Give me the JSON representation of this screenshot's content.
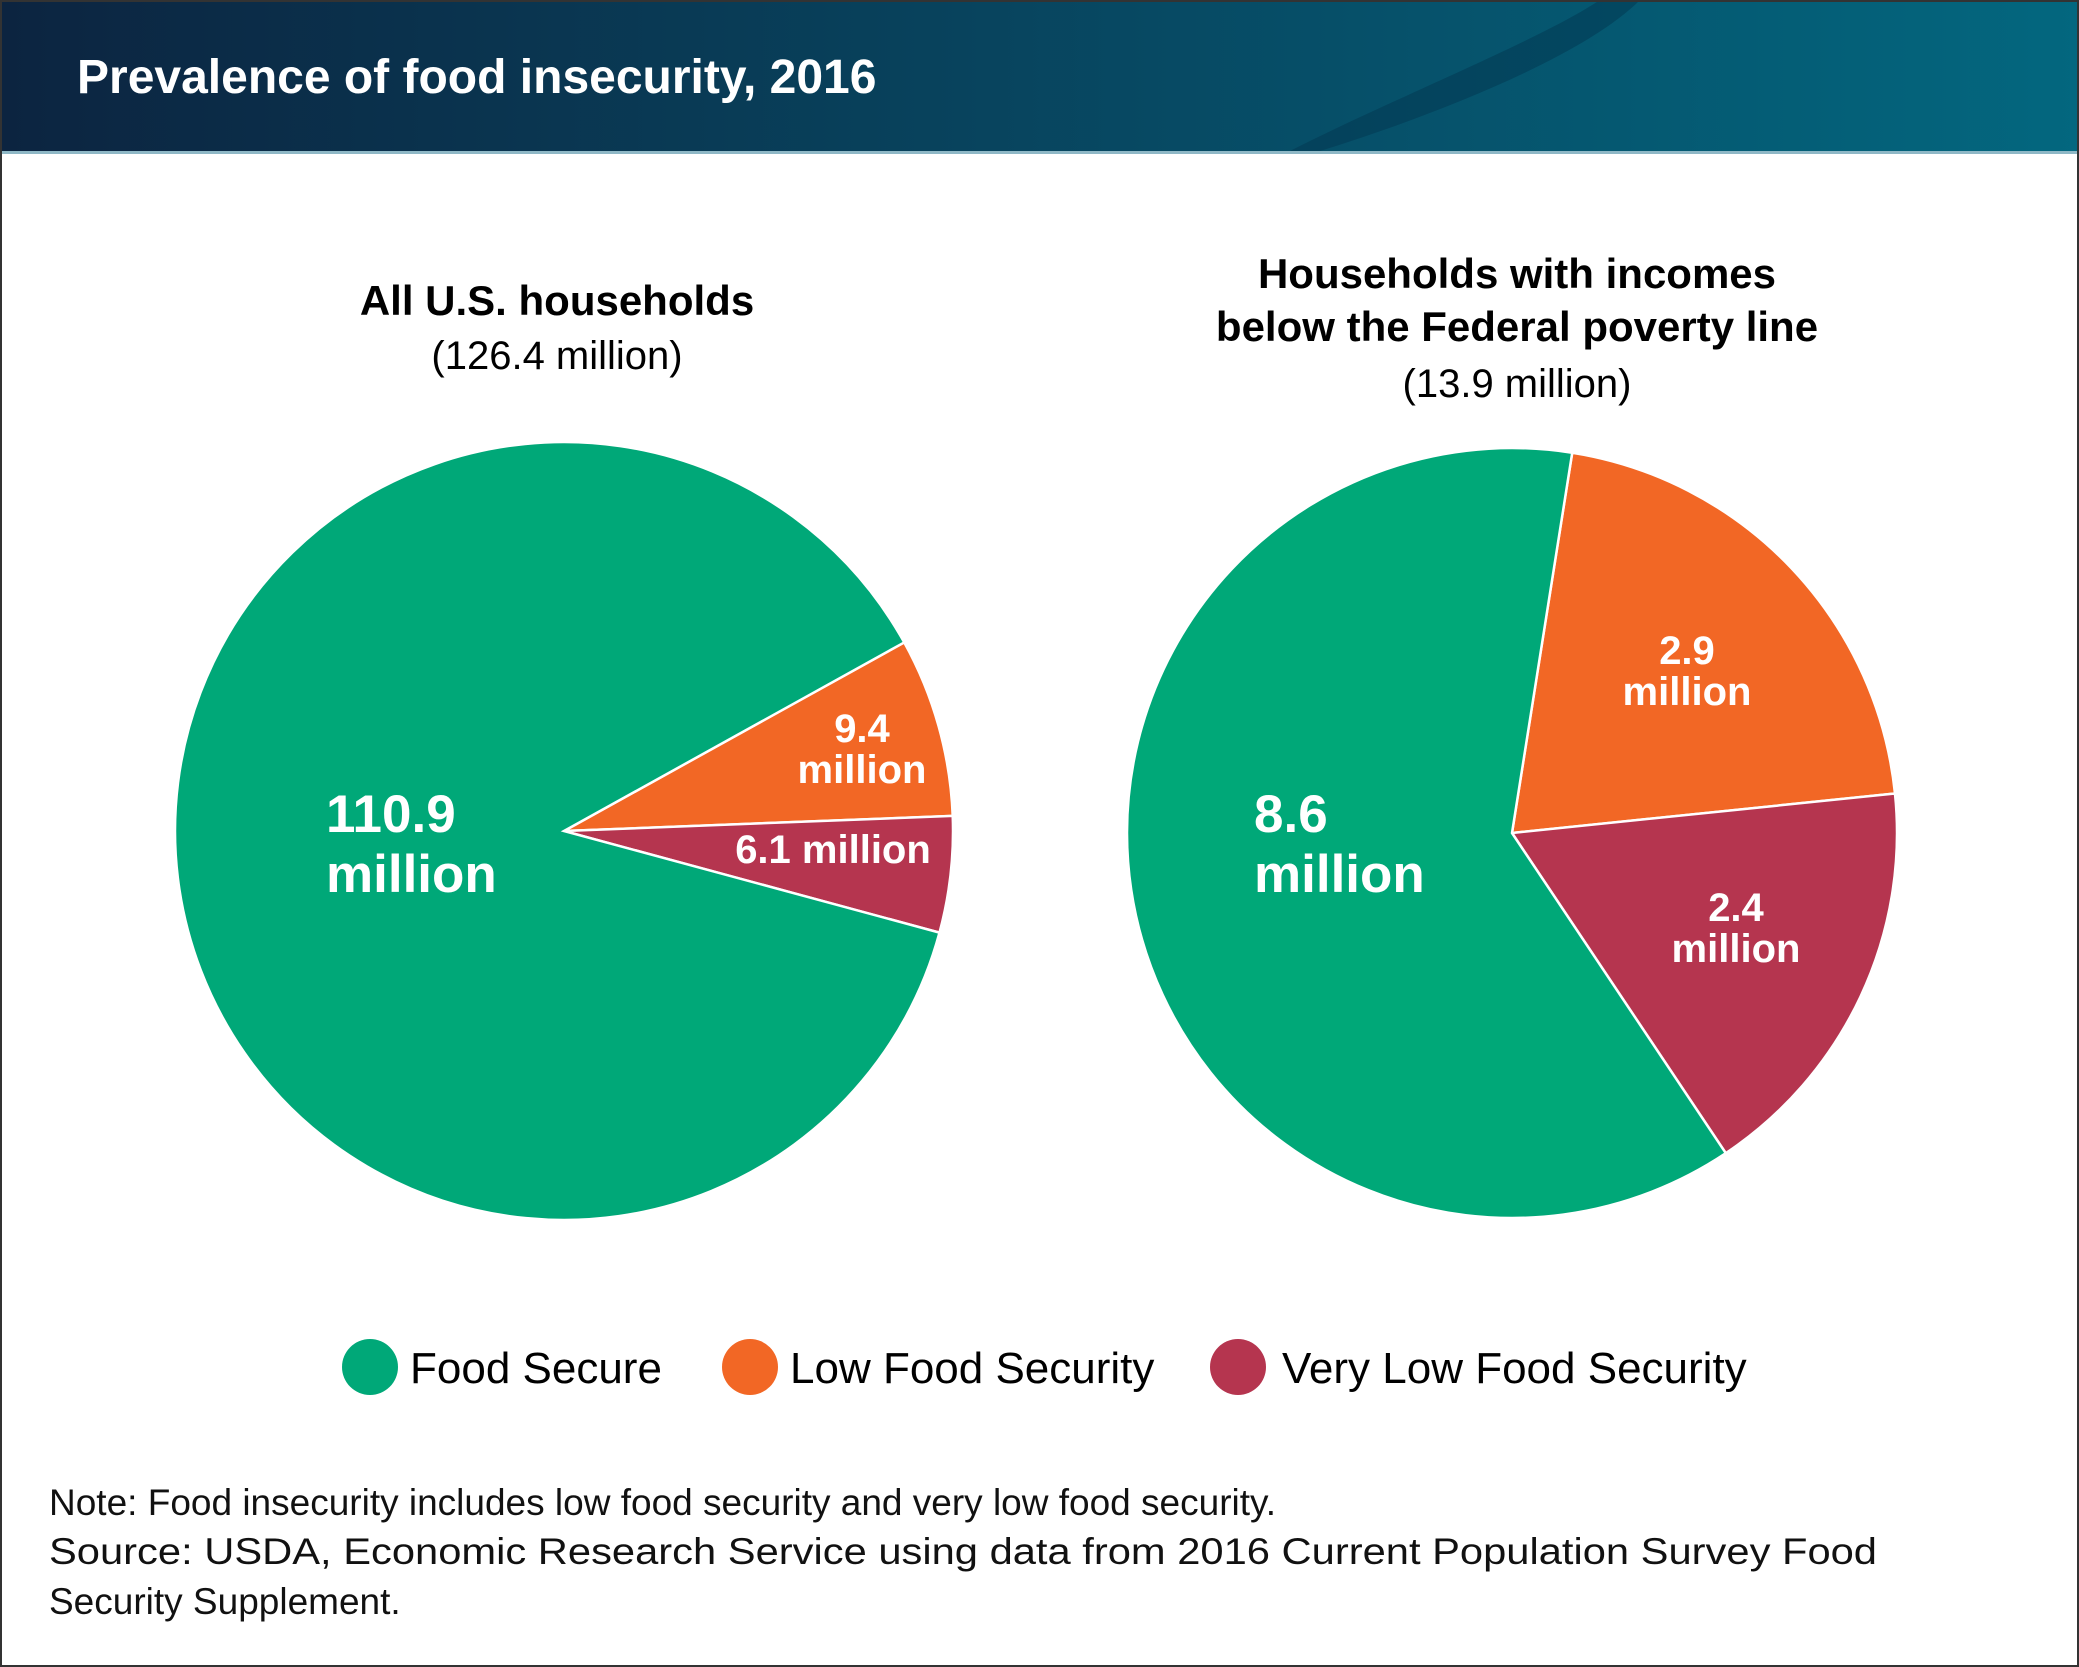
{
  "header": {
    "title": "Prevalence of food insecurity, 2016"
  },
  "colors": {
    "food_secure": "#00a878",
    "low": "#f26725",
    "very_low": "#b5354f",
    "header_dark": "#0c2440",
    "header_light": "#03677f"
  },
  "chart_data": [
    {
      "type": "pie",
      "title": "All U.S. households",
      "subtitle": "(126.4 million)",
      "title_lines": [
        "All U.S. households"
      ],
      "total": 126.4,
      "slices": [
        {
          "name": "Food Secure",
          "value": 110.9,
          "label": [
            "110.9",
            "million"
          ]
        },
        {
          "name": "Low Food Security",
          "value": 9.4,
          "label": [
            "9.4",
            "million"
          ]
        },
        {
          "name": "Very Low Food Security",
          "value": 6.1,
          "label": [
            "6.1 million"
          ]
        }
      ]
    },
    {
      "type": "pie",
      "title": "Households with incomes below the Federal poverty line",
      "subtitle": "(13.9 million)",
      "title_lines": [
        "Households with incomes",
        "below the Federal poverty line"
      ],
      "total": 13.9,
      "slices": [
        {
          "name": "Food Secure",
          "value": 8.6,
          "label": [
            "8.6",
            "million"
          ]
        },
        {
          "name": "Low Food Security",
          "value": 2.9,
          "label": [
            "2.9",
            "million"
          ]
        },
        {
          "name": "Very Low Food Security",
          "value": 2.4,
          "label": [
            "2.4",
            "million"
          ]
        }
      ]
    }
  ],
  "legend": [
    {
      "label": "Food Secure"
    },
    {
      "label": "Low Food Security"
    },
    {
      "label": "Very Low Food Security"
    }
  ],
  "footer": {
    "note": "Note: Food insecurity includes low food security and very low food security.",
    "source_line1": "Source: USDA, Economic Research Service using data from 2016 Current Population Survey Food",
    "source_line2": "Security Supplement."
  }
}
